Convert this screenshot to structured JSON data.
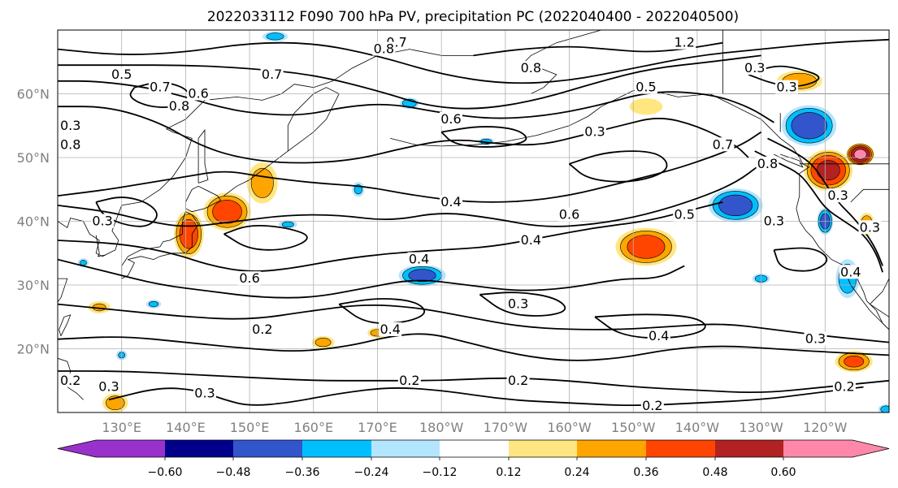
{
  "title": "2022033112 F090 700 hPa PV, precipitation PC (2022040400 - 2022040500)",
  "colors": {
    "pos": [
      "#ffe680",
      "#ffa500",
      "#ff4500",
      "#b22222",
      "#ff88aa"
    ],
    "neg": [
      "#b3e5ff",
      "#00bfff",
      "#3355cc",
      "#00008b",
      "#9932cc"
    ],
    "contour": "#000000",
    "coast": "#000000",
    "grid": "#b0b0b0"
  },
  "map": {
    "lon_labels": [
      "130°E",
      "140°E",
      "150°E",
      "160°E",
      "170°E",
      "180°W",
      "170°W",
      "160°W",
      "150°W",
      "140°W",
      "130°W",
      "120°W"
    ],
    "lat_labels": [
      "20°N",
      "30°N",
      "40°N",
      "50°N",
      "60°N"
    ],
    "contour_labels": [
      {
        "text": "0.5",
        "lon": 130,
        "lat": 63
      },
      {
        "text": "0.7",
        "lon": 136,
        "lat": 61
      },
      {
        "text": "0.6",
        "lon": 142,
        "lat": 60
      },
      {
        "text": "0.8",
        "lon": 139,
        "lat": 58
      },
      {
        "text": "0.7",
        "lon": 153.5,
        "lat": 63
      },
      {
        "text": "0.3",
        "lon": 122,
        "lat": 55
      },
      {
        "text": "0.8",
        "lon": 122,
        "lat": 52
      },
      {
        "text": "0.7",
        "lon": 173,
        "lat": 68
      },
      {
        "text": "0.8",
        "lon": 171,
        "lat": 67
      },
      {
        "text": "0.8",
        "lon": 194,
        "lat": 64
      },
      {
        "text": "1.2",
        "lon": 218,
        "lat": 68
      },
      {
        "text": "0.3",
        "lon": 229,
        "lat": 64
      },
      {
        "text": "0.3",
        "lon": 234,
        "lat": 61
      },
      {
        "text": "0.5",
        "lon": 212,
        "lat": 61
      },
      {
        "text": "0.6",
        "lon": 181.5,
        "lat": 56
      },
      {
        "text": "0.3",
        "lon": 204,
        "lat": 54
      },
      {
        "text": "0.7",
        "lon": 224,
        "lat": 52
      },
      {
        "text": "0.8",
        "lon": 231,
        "lat": 49
      },
      {
        "text": "0.4",
        "lon": 181.5,
        "lat": 43
      },
      {
        "text": "0.6",
        "lon": 200,
        "lat": 41
      },
      {
        "text": "0.5",
        "lon": 218,
        "lat": 41
      },
      {
        "text": "0.3",
        "lon": 232,
        "lat": 40
      },
      {
        "text": "0.3",
        "lon": 242,
        "lat": 44
      },
      {
        "text": "0.3",
        "lon": 247,
        "lat": 39
      },
      {
        "text": "0.4",
        "lon": 194,
        "lat": 37
      },
      {
        "text": "0.4",
        "lon": 176.5,
        "lat": 34
      },
      {
        "text": "0.4",
        "lon": 244,
        "lat": 32
      },
      {
        "text": "0.3",
        "lon": 127,
        "lat": 40
      },
      {
        "text": "0.6",
        "lon": 150,
        "lat": 31
      },
      {
        "text": "0.3",
        "lon": 192,
        "lat": 27
      },
      {
        "text": "0.2",
        "lon": 152,
        "lat": 23
      },
      {
        "text": "0.4",
        "lon": 172,
        "lat": 23
      },
      {
        "text": "0.4",
        "lon": 214,
        "lat": 22
      },
      {
        "text": "0.3",
        "lon": 238.5,
        "lat": 21.5
      },
      {
        "text": "0.2",
        "lon": 122,
        "lat": 15
      },
      {
        "text": "0.3",
        "lon": 128,
        "lat": 14
      },
      {
        "text": "0.3",
        "lon": 143,
        "lat": 13
      },
      {
        "text": "0.2",
        "lon": 175,
        "lat": 15
      },
      {
        "text": "0.2",
        "lon": 192,
        "lat": 15
      },
      {
        "text": "0.2",
        "lon": 213,
        "lat": 11
      },
      {
        "text": "0.2",
        "lon": 243,
        "lat": 14
      }
    ]
  },
  "colorbar": {
    "ticks": [
      "−0.60",
      "−0.48",
      "−0.36",
      "−0.24",
      "−0.12",
      "0.12",
      "0.24",
      "0.36",
      "0.48",
      "0.60"
    ]
  },
  "chart_data": {
    "type": "heatmap",
    "title": "2022033112 F090 700 hPa PV, precipitation PC (2022040400 - 2022040500)",
    "x_ticks": [
      "130°E",
      "140°E",
      "150°E",
      "160°E",
      "170°E",
      "180°W",
      "170°W",
      "160°W",
      "150°W",
      "140°W",
      "130°W",
      "120°W"
    ],
    "y_ticks": [
      "20°N",
      "30°N",
      "40°N",
      "50°N",
      "60°N"
    ],
    "xlim": [
      120,
      250
    ],
    "ylim": [
      10,
      70
    ],
    "contour_values": [
      0.2,
      0.3,
      0.4,
      0.5,
      0.6,
      0.7,
      0.8,
      1.2
    ],
    "color_levels": [
      -0.6,
      -0.48,
      -0.36,
      -0.24,
      -0.12,
      0.12,
      0.24,
      0.36,
      0.48,
      0.6
    ],
    "precip_blobs": [
      {
        "lon": 146.5,
        "lat": 41.5,
        "r_lon": 3.5,
        "r_lat": 2.8,
        "peak": 0.42
      },
      {
        "lon": 140.5,
        "lat": 38,
        "r_lon": 2.2,
        "r_lat": 3.5,
        "peak": 0.42
      },
      {
        "lon": 152,
        "lat": 46,
        "r_lon": 2.4,
        "r_lat": 3.2,
        "peak": 0.3
      },
      {
        "lon": 126.5,
        "lat": 26.5,
        "r_lon": 1.8,
        "r_lat": 1.0,
        "peak": 0.25
      },
      {
        "lon": 161.5,
        "lat": 21,
        "r_lon": 1.8,
        "r_lat": 1.0,
        "peak": 0.28
      },
      {
        "lon": 170,
        "lat": 22.5,
        "r_lon": 1.6,
        "r_lat": 0.8,
        "peak": 0.28
      },
      {
        "lon": 129,
        "lat": 11.5,
        "r_lon": 2.0,
        "r_lat": 1.5,
        "peak": 0.3
      },
      {
        "lon": 212,
        "lat": 36,
        "r_lon": 4.5,
        "r_lat": 2.8,
        "peak": 0.42
      },
      {
        "lon": 236,
        "lat": 62,
        "r_lon": 3.5,
        "r_lat": 1.6,
        "peak": 0.32
      },
      {
        "lon": 240.5,
        "lat": 48,
        "r_lon": 3.5,
        "r_lat": 3.0,
        "peak": 0.5
      },
      {
        "lon": 245.5,
        "lat": 50.5,
        "r_lon": 2.0,
        "r_lat": 1.6,
        "peak": 0.62
      },
      {
        "lon": 246.5,
        "lat": 39.5,
        "r_lon": 1.2,
        "r_lat": 1.8,
        "peak": 0.32
      },
      {
        "lon": 244.5,
        "lat": 18,
        "r_lon": 2.8,
        "r_lat": 1.6,
        "peak": 0.38
      },
      {
        "lon": 212,
        "lat": 58,
        "r_lon": 2.8,
        "r_lat": 1.4,
        "peak": 0.22
      },
      {
        "lon": 237.5,
        "lat": 55,
        "r_lon": 4.0,
        "r_lat": 3.0,
        "peak": -0.44
      },
      {
        "lon": 226,
        "lat": 42.5,
        "r_lon": 4.0,
        "r_lat": 2.5,
        "peak": -0.42
      },
      {
        "lon": 177,
        "lat": 31.5,
        "r_lon": 3.5,
        "r_lat": 1.6,
        "peak": -0.4
      },
      {
        "lon": 240,
        "lat": 40,
        "r_lon": 1.2,
        "r_lat": 2.0,
        "peak": -0.4
      },
      {
        "lon": 243.5,
        "lat": 31,
        "r_lon": 1.8,
        "r_lat": 3.0,
        "peak": -0.32
      },
      {
        "lon": 175,
        "lat": 58.5,
        "r_lon": 1.5,
        "r_lat": 0.9,
        "peak": -0.3
      },
      {
        "lon": 187,
        "lat": 52.5,
        "r_lon": 1.3,
        "r_lat": 0.6,
        "peak": -0.28
      },
      {
        "lon": 154,
        "lat": 69,
        "r_lon": 2.0,
        "r_lat": 0.8,
        "peak": -0.28
      },
      {
        "lon": 230,
        "lat": 31,
        "r_lon": 1.4,
        "r_lat": 0.8,
        "peak": -0.28
      },
      {
        "lon": 135,
        "lat": 27,
        "r_lon": 1.2,
        "r_lat": 0.7,
        "peak": -0.26
      },
      {
        "lon": 124,
        "lat": 33.5,
        "r_lon": 0.9,
        "r_lat": 0.7,
        "peak": -0.25
      },
      {
        "lon": 156,
        "lat": 39.5,
        "r_lon": 1.5,
        "r_lat": 0.7,
        "peak": -0.26
      },
      {
        "lon": 167,
        "lat": 45,
        "r_lon": 1.0,
        "r_lat": 1.2,
        "peak": -0.26
      },
      {
        "lon": 130,
        "lat": 19,
        "r_lon": 0.9,
        "r_lat": 0.8,
        "peak": -0.25
      },
      {
        "lon": 249.5,
        "lat": 10.5,
        "r_lon": 1.2,
        "r_lat": 0.8,
        "peak": -0.28
      }
    ]
  }
}
